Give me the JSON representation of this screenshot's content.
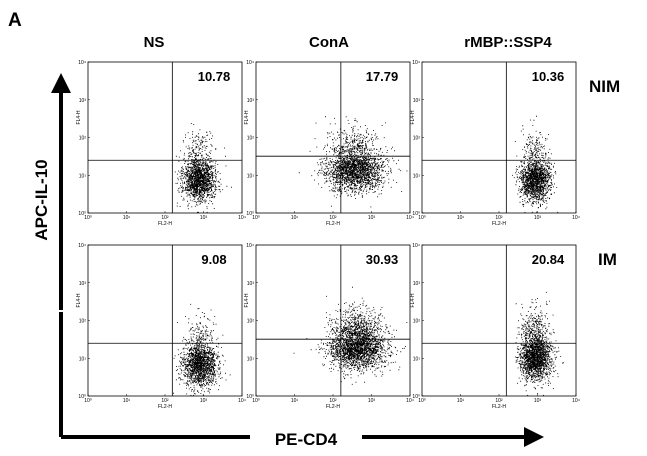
{
  "figure": {
    "panel_letter": "A",
    "x_axis_title": "PE-CD4",
    "y_axis_title": "APC-IL-10",
    "column_labels": [
      "NS",
      "ConA",
      "rMBP::SSP4"
    ],
    "row_labels": [
      "NIM",
      "IM"
    ],
    "plot_xlabel": "FL2-H",
    "plot_ylabel": "FL4-H"
  },
  "chart_data": [
    {
      "type": "scatter",
      "row": "NIM",
      "column": "NS",
      "xlabel": "FL2-H",
      "ylabel": "FL4-H",
      "xscale": "log",
      "yscale": "log",
      "xlim": [
        1,
        10000
      ],
      "ylim": [
        1,
        10000
      ],
      "x_ticks": [
        "10⁰",
        "10¹",
        "10²",
        "10³",
        "10⁴"
      ],
      "y_ticks": [
        "10⁰",
        "10¹",
        "10²",
        "10³",
        "10⁴"
      ],
      "gate": {
        "x": 155,
        "y": 25
      },
      "upper_right_percent": 10.78,
      "cloud": {
        "center": [
          750,
          8
        ],
        "spread": [
          0.22,
          0.42
        ],
        "upper_fraction": 0.1078,
        "points": 1700
      }
    },
    {
      "type": "scatter",
      "row": "NIM",
      "column": "ConA",
      "xlabel": "FL2-H",
      "ylabel": "FL4-H",
      "xscale": "log",
      "yscale": "log",
      "xlim": [
        1,
        10000
      ],
      "ylim": [
        1,
        10000
      ],
      "x_ticks": [
        "10⁰",
        "10¹",
        "10²",
        "10³",
        "10⁴"
      ],
      "y_ticks": [
        "10⁰",
        "10¹",
        "10²",
        "10³",
        "10⁴"
      ],
      "gate": {
        "x": 160,
        "y": 32
      },
      "upper_right_percent": 17.79,
      "cloud": {
        "center": [
          360,
          14
        ],
        "spread": [
          0.38,
          0.4
        ],
        "upper_fraction": 0.1779,
        "points": 2300
      }
    },
    {
      "type": "scatter",
      "row": "NIM",
      "column": "rMBP::SSP4",
      "xlabel": "FL2-H",
      "ylabel": "FL4-H",
      "xscale": "log",
      "yscale": "log",
      "xlim": [
        1,
        10000
      ],
      "ylim": [
        1,
        10000
      ],
      "x_ticks": [
        "10⁰",
        "10¹",
        "10²",
        "10³",
        "10⁴"
      ],
      "y_ticks": [
        "10⁰",
        "10¹",
        "10²",
        "10³",
        "10⁴"
      ],
      "gate": {
        "x": 155,
        "y": 25
      },
      "upper_right_percent": 10.36,
      "cloud": {
        "center": [
          850,
          8
        ],
        "spread": [
          0.2,
          0.42
        ],
        "upper_fraction": 0.1036,
        "points": 1700
      }
    },
    {
      "type": "scatter",
      "row": "IM",
      "column": "NS",
      "xlabel": "FL2-H",
      "ylabel": "FL4-H",
      "xscale": "log",
      "yscale": "log",
      "xlim": [
        1,
        10000
      ],
      "ylim": [
        1,
        10000
      ],
      "x_ticks": [
        "10⁰",
        "10¹",
        "10²",
        "10³",
        "10⁴"
      ],
      "y_ticks": [
        "10⁰",
        "10¹",
        "10²",
        "10³",
        "10⁴"
      ],
      "gate": {
        "x": 155,
        "y": 25
      },
      "upper_right_percent": 9.08,
      "cloud": {
        "center": [
          800,
          7
        ],
        "spread": [
          0.22,
          0.42
        ],
        "upper_fraction": 0.0908,
        "points": 1700
      }
    },
    {
      "type": "scatter",
      "row": "IM",
      "column": "ConA",
      "xlabel": "FL2-H",
      "ylabel": "FL4-H",
      "xscale": "log",
      "yscale": "log",
      "xlim": [
        1,
        10000
      ],
      "ylim": [
        1,
        10000
      ],
      "x_ticks": [
        "10⁰",
        "10¹",
        "10²",
        "10³",
        "10⁴"
      ],
      "y_ticks": [
        "10⁰",
        "10¹",
        "10²",
        "10³",
        "10⁴"
      ],
      "gate": {
        "x": 160,
        "y": 32
      },
      "upper_right_percent": 30.93,
      "cloud": {
        "center": [
          420,
          20
        ],
        "spread": [
          0.38,
          0.42
        ],
        "upper_fraction": 0.3093,
        "points": 2600
      }
    },
    {
      "type": "scatter",
      "row": "IM",
      "column": "rMBP::SSP4",
      "xlabel": "FL2-H",
      "ylabel": "FL4-H",
      "xscale": "log",
      "yscale": "log",
      "xlim": [
        1,
        10000
      ],
      "ylim": [
        1,
        10000
      ],
      "x_ticks": [
        "10⁰",
        "10¹",
        "10²",
        "10³",
        "10⁴"
      ],
      "y_ticks": [
        "10⁰",
        "10¹",
        "10²",
        "10³",
        "10⁴"
      ],
      "gate": {
        "x": 155,
        "y": 25
      },
      "upper_right_percent": 20.84,
      "cloud": {
        "center": [
          850,
          12
        ],
        "spread": [
          0.2,
          0.48
        ],
        "upper_fraction": 0.2084,
        "points": 2000
      }
    }
  ]
}
